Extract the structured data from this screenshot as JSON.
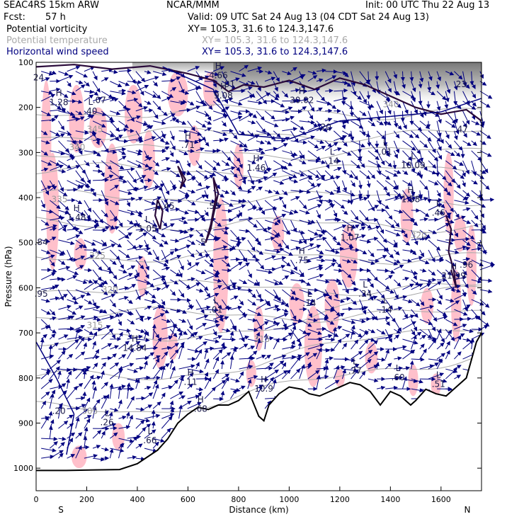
{
  "header": {
    "model": "SEAC4RS 15km ARW",
    "org": "NCAR/MMM",
    "init": "Init: 00 UTC Thu 22 Aug 13",
    "fcst_label": "Fcst:",
    "fcst_value": "57 h",
    "valid": "Valid: 09 UTC Sat 24 Aug 13 (04 CDT Sat 24 Aug 13)"
  },
  "fields": [
    {
      "name": "Potential vorticity",
      "xy": "XY= 105.3, 31.6 to 124.3,147.6",
      "color": "#000000"
    },
    {
      "name": "Potential temperature",
      "xy": "XY= 105.3, 31.6 to 124.3,147.6",
      "color": "#a9a9a9"
    },
    {
      "name": "Horizontal wind speed",
      "xy": "XY= 105.3, 31.6 to 124.3,147.6",
      "color": "#000080"
    }
  ],
  "chart_data": {
    "type": "cross-section",
    "xlabel": "Distance (km)",
    "ylabel": "Pressure (hPa)",
    "x_ticks": [
      0,
      200,
      400,
      600,
      800,
      1000,
      1200,
      1400,
      1600
    ],
    "y_ticks": [
      100,
      200,
      300,
      400,
      500,
      600,
      700,
      800,
      900,
      1000
    ],
    "xlim": [
      0,
      1760
    ],
    "ylim": [
      1050,
      100
    ],
    "end_labels": {
      "left": "S",
      "right": "N"
    },
    "theta_labels": [
      {
        "x": 1370,
        "p": 200,
        "v": "340"
      },
      {
        "x": 200,
        "p": 255,
        "v": "345"
      },
      {
        "x": 130,
        "p": 295,
        "v": "340"
      },
      {
        "x": 60,
        "p": 410,
        "v": "335"
      },
      {
        "x": 210,
        "p": 535,
        "v": "325"
      },
      {
        "x": 260,
        "p": 610,
        "v": "320"
      },
      {
        "x": 200,
        "p": 690,
        "v": "315"
      },
      {
        "x": 860,
        "p": 720,
        "v": "315"
      },
      {
        "x": 1480,
        "p": 490,
        "v": "320"
      },
      {
        "x": 180,
        "p": 880,
        "v": "305"
      }
    ],
    "hl_labels": [
      {
        "x": 90,
        "p": 195,
        "kind": "H",
        "v": "1.28"
      },
      {
        "x": 215,
        "p": 215,
        "kind": "L",
        "v": ".40"
      },
      {
        "x": 250,
        "p": 190,
        "kind": "",
        "v": ".07"
      },
      {
        "x": 600,
        "p": 290,
        "kind": "H",
        "v": ".71"
      },
      {
        "x": 870,
        "p": 340,
        "kind": "H",
        "v": "1.46"
      },
      {
        "x": 1170,
        "p": 325,
        "kind": "L",
        "v": ".14"
      },
      {
        "x": 1380,
        "p": 305,
        "kind": "L",
        "v": ".01"
      },
      {
        "x": 1490,
        "p": 335,
        "kind": "L",
        "v": "10.09"
      },
      {
        "x": 1480,
        "p": 410,
        "kind": "H",
        "v": "1.58"
      },
      {
        "x": 1590,
        "p": 440,
        "kind": "L",
        "v": ".46"
      },
      {
        "x": 160,
        "p": 450,
        "kind": "H",
        "v": "1.48"
      },
      {
        "x": 440,
        "p": 475,
        "kind": "L",
        "v": "1.05"
      },
      {
        "x": 510,
        "p": 425,
        "kind": "",
        "v": "2.45"
      },
      {
        "x": 700,
        "p": 425,
        "kind": "",
        "v": ".58"
      },
      {
        "x": 655,
        "p": 505,
        "kind": "",
        "v": ".5"
      },
      {
        "x": 1050,
        "p": 545,
        "kind": "H",
        "v": ".75"
      },
      {
        "x": 1240,
        "p": 495,
        "kind": "H",
        "v": "1.07"
      },
      {
        "x": 1300,
        "p": 620,
        "kind": "L",
        "v": ".34"
      },
      {
        "x": 1650,
        "p": 580,
        "kind": "H",
        "v": "21.99"
      },
      {
        "x": 1700,
        "p": 555,
        "kind": "",
        "v": ".96"
      },
      {
        "x": 20,
        "p": 505,
        "kind": "",
        "v": ".84"
      },
      {
        "x": 20,
        "p": 620,
        "kind": "",
        "v": ".95"
      },
      {
        "x": 710,
        "p": 655,
        "kind": "L",
        "v": ".01"
      },
      {
        "x": 1080,
        "p": 640,
        "kind": "L",
        "v": ".14"
      },
      {
        "x": 1380,
        "p": 655,
        "kind": "L",
        "v": ".14"
      },
      {
        "x": 390,
        "p": 740,
        "kind": "H",
        "v": "14.84"
      },
      {
        "x": 610,
        "p": 815,
        "kind": "H",
        "v": ".11"
      },
      {
        "x": 1260,
        "p": 790,
        "kind": "L",
        "v": ".77"
      },
      {
        "x": 1430,
        "p": 805,
        "kind": "L",
        "v": ".60"
      },
      {
        "x": 1590,
        "p": 820,
        "kind": "L",
        "v": ".51"
      },
      {
        "x": 900,
        "p": 830,
        "kind": "H",
        "v": "10.9"
      },
      {
        "x": 650,
        "p": 875,
        "kind": "H",
        "v": ".68"
      },
      {
        "x": 280,
        "p": 905,
        "kind": "L",
        "v": ".26"
      },
      {
        "x": 450,
        "p": 945,
        "kind": "L",
        "v": ".66"
      },
      {
        "x": 90,
        "p": 880,
        "kind": "",
        "v": ".20"
      },
      {
        "x": 720,
        "p": 135,
        "kind": "H",
        "v": "4.66"
      },
      {
        "x": 760,
        "p": 155,
        "kind": "",
        "v": ".91"
      },
      {
        "x": 740,
        "p": 180,
        "kind": "H",
        "v": "9.08"
      },
      {
        "x": 1050,
        "p": 190,
        "kind": "H",
        "v": "30.02"
      },
      {
        "x": 1140,
        "p": 250,
        "kind": "",
        "v": ".20"
      },
      {
        "x": 1680,
        "p": 255,
        "kind": "",
        "v": ".47"
      },
      {
        "x": 10,
        "p": 140,
        "kind": "",
        "v": "24"
      },
      {
        "x": 1680,
        "p": 155,
        "kind": "",
        "v": "23"
      }
    ]
  },
  "colors": {
    "pv_shade": "#ffc0cb",
    "theta": "#a9a9a9",
    "wind": "#000080",
    "pv_contour": "#2a0a3a",
    "terrain": "#000000"
  }
}
